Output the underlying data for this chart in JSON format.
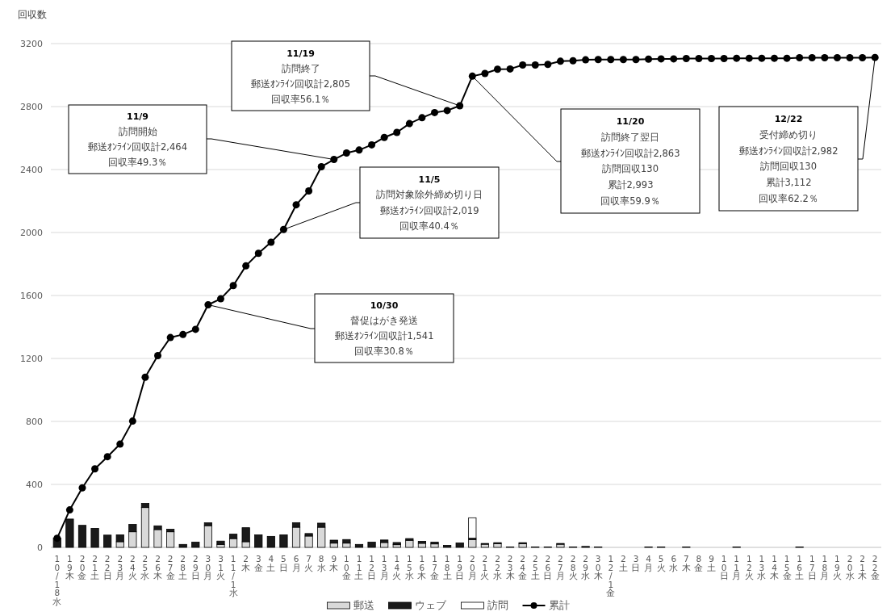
{
  "chart_data": {
    "type": "bar",
    "stacked": true,
    "ylabel": "回収数",
    "grid": "y",
    "legend": "bottom",
    "ylim": [
      0,
      3200
    ],
    "yticks": [
      0,
      400,
      800,
      1200,
      1600,
      2000,
      2400,
      2800,
      3200
    ],
    "categories": [
      "10/18水",
      "19木",
      "20金",
      "21土",
      "22日",
      "23月",
      "24火",
      "25水",
      "26木",
      "27金",
      "28土",
      "29日",
      "30月",
      "31火",
      "11/1水",
      "2木",
      "3金",
      "4土",
      "5日",
      "6月",
      "7火",
      "8水",
      "9木",
      "10金",
      "11土",
      "12日",
      "13月",
      "14火",
      "15水",
      "16木",
      "17金",
      "18土",
      "19日",
      "20月",
      "21火",
      "22水",
      "23木",
      "24金",
      "25土",
      "26日",
      "27月",
      "28火",
      "29水",
      "30木",
      "12/1金",
      "2土",
      "3日",
      "4月",
      "5火",
      "6水",
      "7木",
      "8金",
      "9土",
      "10日",
      "11月",
      "12火",
      "13水",
      "14木",
      "15金",
      "16土",
      "17日",
      "18月",
      "19火",
      "20水",
      "21木",
      "22金"
    ],
    "series": [
      {
        "name": "郵送",
        "color": "#d9d9d9",
        "values": [
          0,
          0,
          0,
          0,
          0,
          36,
          99,
          253,
          113,
          99,
          0,
          0,
          138,
          19,
          56,
          36,
          0,
          0,
          0,
          128,
          72,
          128,
          27,
          27,
          0,
          0,
          31,
          17,
          45,
          26,
          22,
          0,
          0,
          50,
          20,
          24,
          0,
          24,
          0,
          0,
          20,
          0,
          3,
          0,
          0,
          0,
          0,
          0,
          0,
          0,
          0,
          0,
          0,
          0,
          0,
          0,
          0,
          0,
          0,
          0,
          0,
          0,
          0,
          0,
          0,
          0
        ]
      },
      {
        "name": "ウェブ",
        "color": "#1a1a1a",
        "values": [
          60,
          180,
          140,
          121,
          78,
          44,
          47,
          26,
          24,
          16,
          19,
          33,
          18,
          21,
          28,
          89,
          80,
          70,
          80,
          29,
          16,
          26,
          19,
          23,
          19,
          33,
          16,
          14,
          11,
          13,
          11,
          13,
          28,
          8,
          5,
          6,
          3,
          6,
          3,
          3,
          5,
          3,
          3,
          3,
          0,
          0,
          0,
          3,
          3,
          0,
          3,
          0,
          0,
          0,
          3,
          0,
          0,
          0,
          0,
          3,
          0,
          0,
          0,
          0,
          0,
          0
        ]
      },
      {
        "name": "訪問",
        "color": "#ffffff",
        "values": [
          0,
          0,
          0,
          0,
          0,
          0,
          0,
          0,
          0,
          0,
          0,
          0,
          0,
          0,
          0,
          0,
          0,
          0,
          0,
          0,
          0,
          0,
          0,
          0,
          0,
          0,
          0,
          0,
          0,
          0,
          0,
          0,
          0,
          130,
          0,
          0,
          0,
          0,
          0,
          0,
          0,
          0,
          0,
          0,
          0,
          0,
          0,
          0,
          0,
          0,
          0,
          0,
          0,
          0,
          0,
          0,
          0,
          0,
          0,
          0,
          0,
          0,
          0,
          0,
          0,
          0
        ]
      },
      {
        "name": "累計",
        "type": "line",
        "color": "#000000",
        "marker": "circle",
        "values": [
          58,
          238,
          378,
          499,
          576,
          656,
          802,
          1081,
          1218,
          1333,
          1352,
          1385,
          1541,
          1579,
          1663,
          1788,
          1868,
          1938,
          2019,
          2176,
          2264,
          2418,
          2464,
          2505,
          2524,
          2557,
          2604,
          2636,
          2692,
          2729,
          2762,
          2775,
          2805,
          2993,
          3010,
          3037,
          3039,
          3064,
          3064,
          3068,
          3088,
          3091,
          3097,
          3099,
          3099,
          3099,
          3099,
          3101,
          3103,
          3103,
          3105,
          3105,
          3105,
          3105,
          3107,
          3107,
          3107,
          3107,
          3107,
          3110,
          3110,
          3110,
          3110,
          3110,
          3110,
          3112
        ]
      }
    ],
    "annotations": [
      "10/30",
      "督促はがき発送",
      "郵送ｵﾝﾗｲﾝ回収計1,541",
      "回収率30.8％",
      "11/5",
      "訪問対象除外締め切り日",
      "郵送ｵﾝﾗｲﾝ回収計2,019",
      "回収率40.4％",
      "11/9",
      "訪問開始",
      "郵送ｵﾝﾗｲﾝ回収計2,464",
      "回収率49.3％",
      "11/19",
      "訪問終了",
      "郵送ｵﾝﾗｲﾝ回収計2,805",
      "回収率56.1％",
      "11/20",
      "訪問終了翌日",
      "郵送ｵﾝﾗｲﾝ回収計2,863",
      "訪問回収130",
      "累計2,993",
      "回収率59.9％",
      "12/22",
      "受付締め切り",
      "郵送ｵﾝﾗｲﾝ回収計2,982",
      "訪問回収130",
      "累計3,112",
      "回収率62.2％"
    ]
  }
}
